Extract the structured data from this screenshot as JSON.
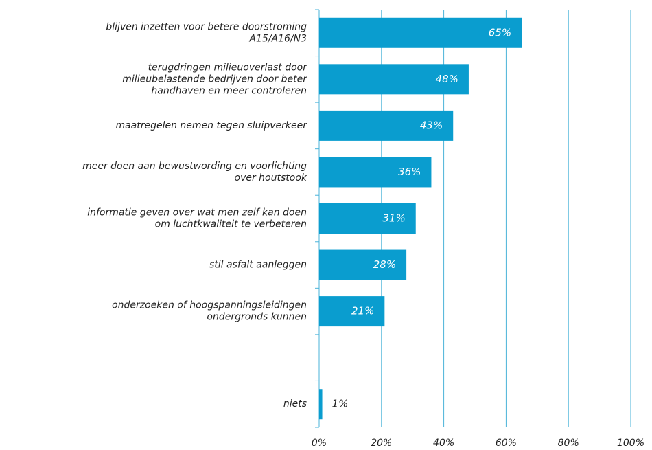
{
  "chart_data": {
    "type": "barh",
    "categories": [
      "blijven inzetten voor betere doorstroming\nA15/A16/N3",
      "terugdringen milieuoverlast door\nmilieubelastende bedrijven door beter\nhandhaven en meer controleren",
      "maatregelen nemen tegen sluipverkeer",
      "meer doen aan bewustwording en voorlichting\nover houtstook",
      "informatie geven over wat men zelf kan doen\nom luchtkwaliteit te verbeteren",
      "stil asfalt aanleggen",
      "onderzoeken of hoogspanningsleidingen\nondergronds kunnen",
      null,
      "niets"
    ],
    "values": [
      65,
      48,
      43,
      36,
      31,
      28,
      21,
      null,
      1
    ],
    "value_labels": [
      "65%",
      "48%",
      "43%",
      "36%",
      "31%",
      "28%",
      "21%",
      null,
      "1%"
    ],
    "color": "#0a9dcf",
    "xlim": [
      0,
      100
    ],
    "xticks": [
      {
        "value": 0,
        "label": "0%"
      },
      {
        "value": 20,
        "label": "20%"
      },
      {
        "value": 40,
        "label": "40%"
      },
      {
        "value": 60,
        "label": "60%"
      },
      {
        "value": 80,
        "label": "80%"
      },
      {
        "value": 100,
        "label": "100%"
      }
    ],
    "grid": true
  }
}
